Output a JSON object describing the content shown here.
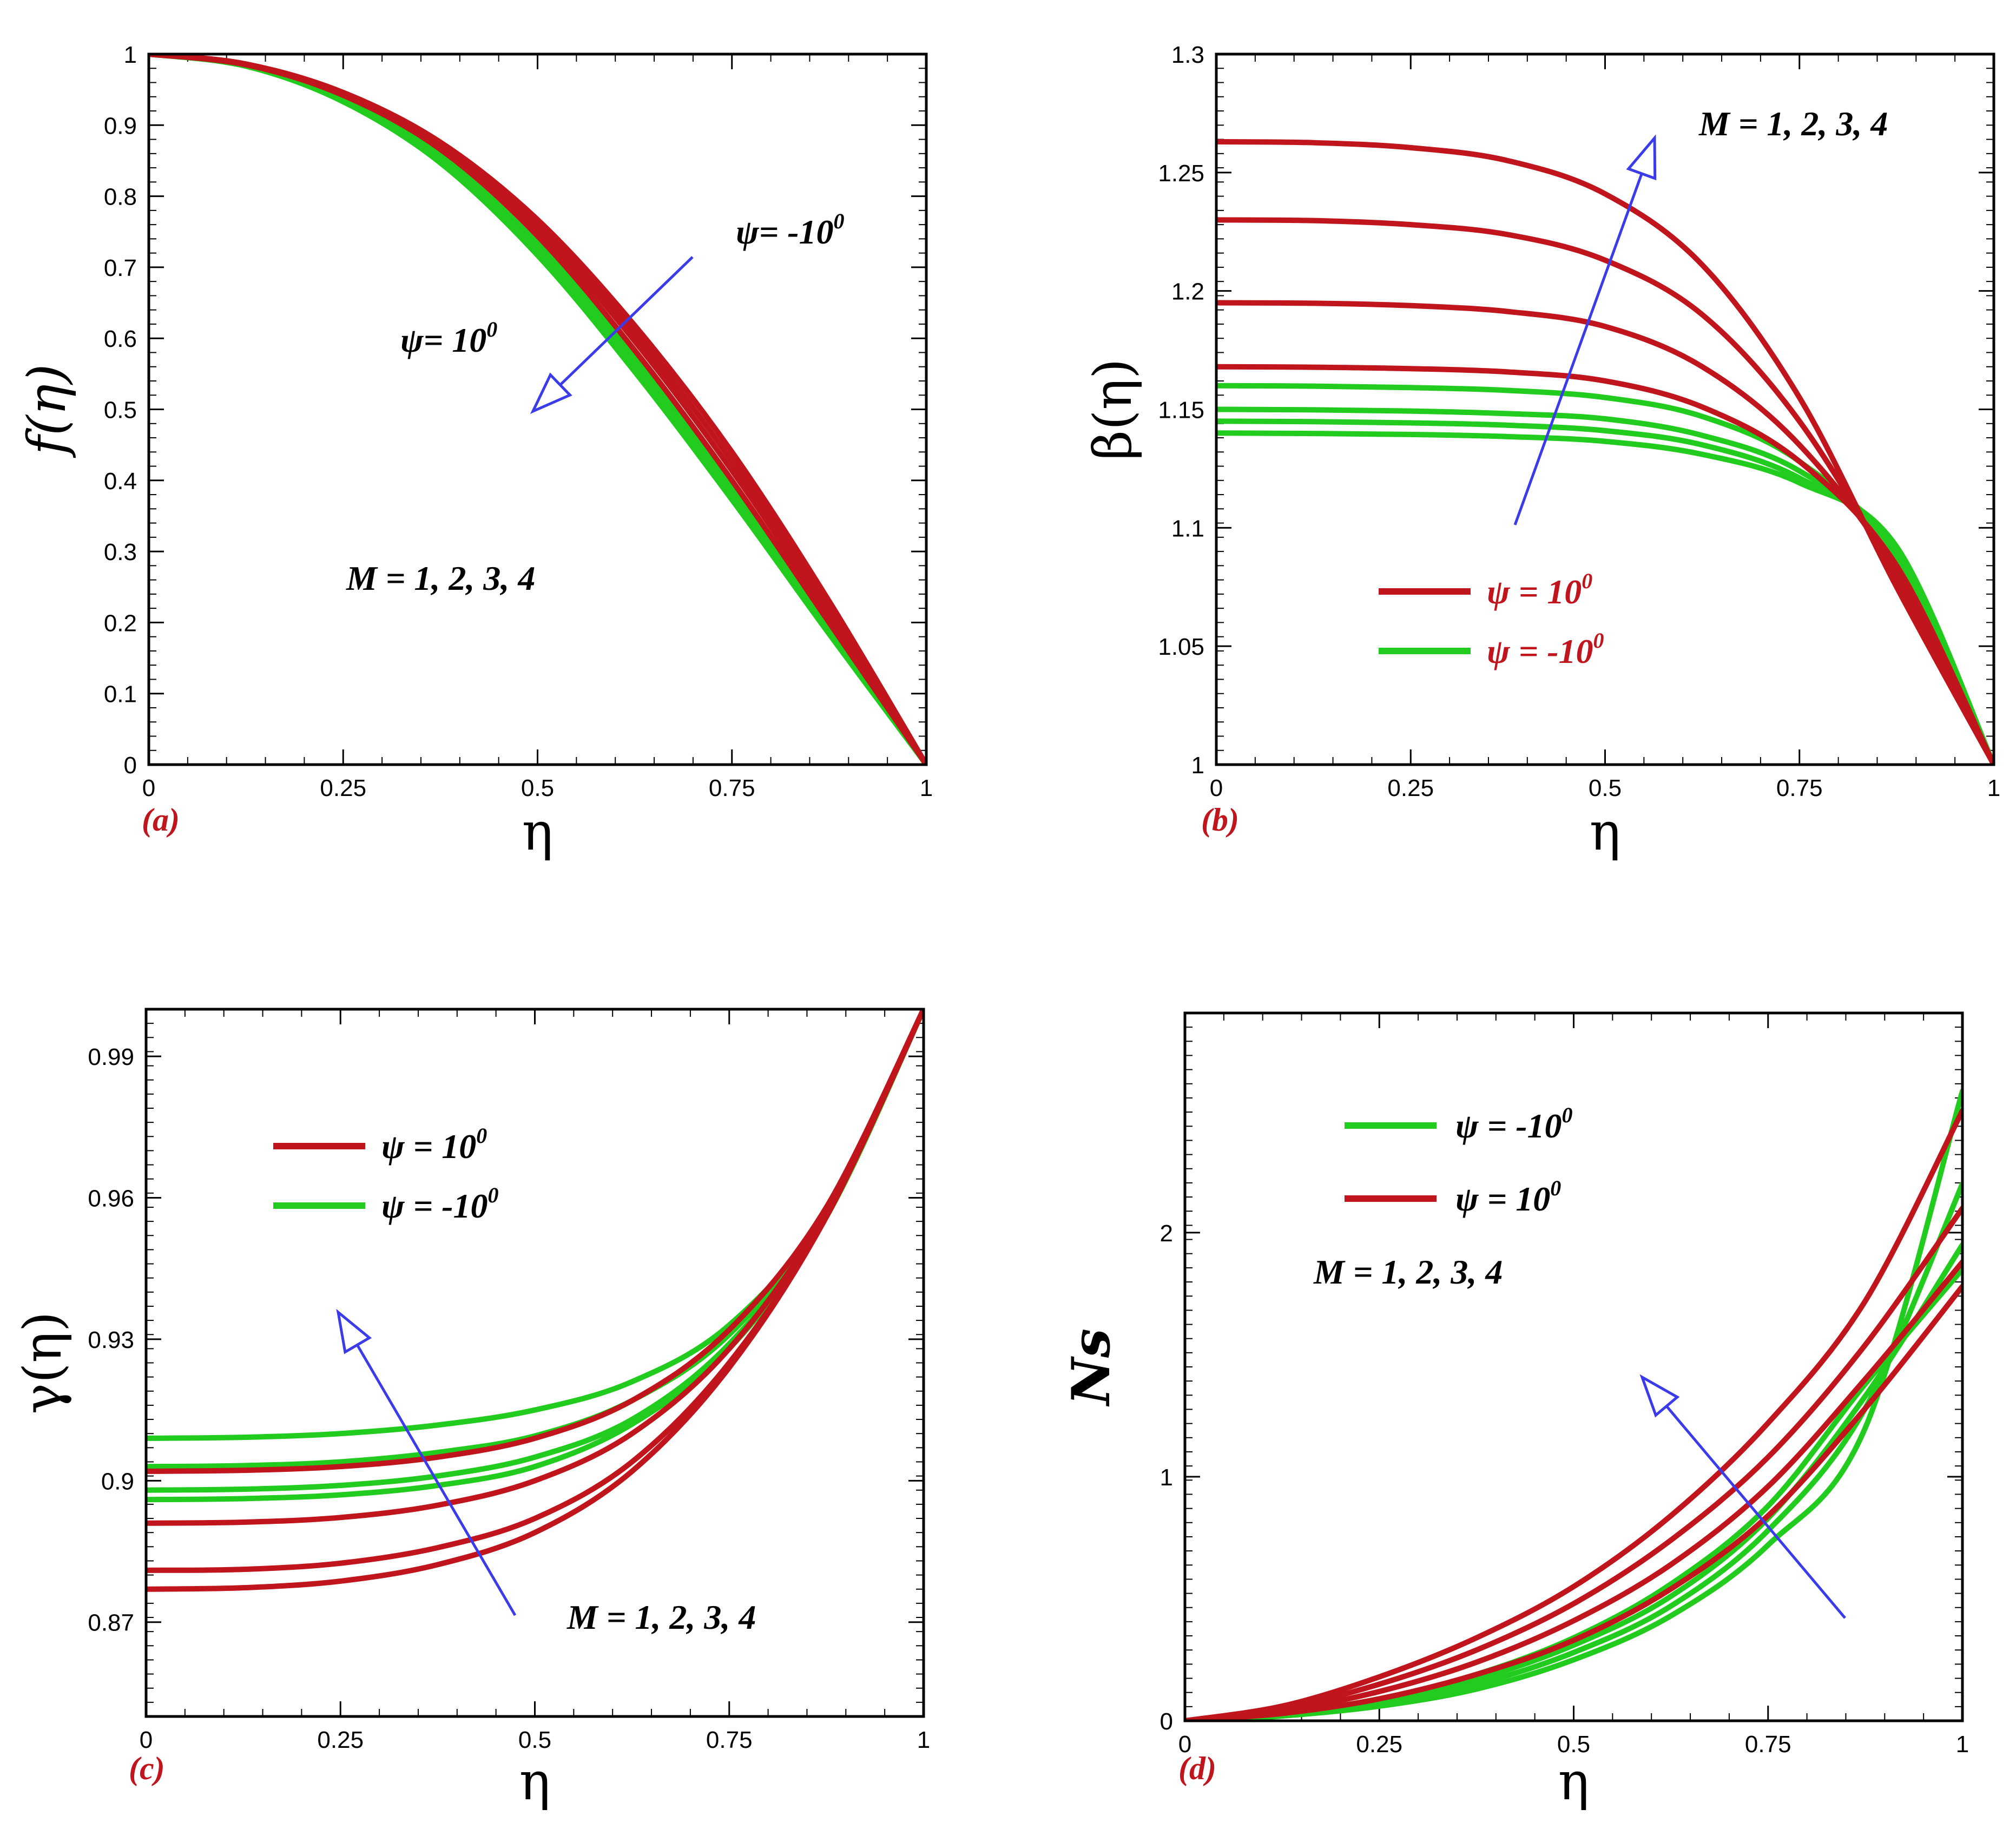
{
  "colors": {
    "red": "#c0151c",
    "green": "#22cc1e",
    "arrow": "#3b3bea",
    "axis": "#000000"
  },
  "chart_data": [
    {
      "id": "a",
      "type": "line",
      "panel_label": "(a)",
      "xlabel": "η",
      "ylabel": "f(η)",
      "xlim": [
        0,
        1
      ],
      "ylim": [
        0,
        1
      ],
      "xticks": [
        "0",
        "0.25",
        "0.5",
        "0.75",
        "1"
      ],
      "yticks": [
        "0",
        "0.1",
        "0.2",
        "0.3",
        "0.4",
        "0.5",
        "0.6",
        "0.7",
        "0.8",
        "0.9",
        "1"
      ],
      "annotations": [
        "ψ= -10",
        "ψ= 10",
        "M = 1, 2, 3, 4"
      ],
      "superscripts": [
        "0",
        "0"
      ],
      "x": [
        0,
        0.125,
        0.25,
        0.375,
        0.5,
        0.625,
        0.75,
        0.875,
        1
      ],
      "series": [
        {
          "name": "ψ = 10⁰, M = 1",
          "color": "red",
          "values": [
            1,
            0.986,
            0.946,
            0.876,
            0.767,
            0.618,
            0.44,
            0.23,
            0
          ]
        },
        {
          "name": "ψ = 10⁰, M = 2",
          "color": "red",
          "values": [
            1,
            0.986,
            0.945,
            0.873,
            0.76,
            0.607,
            0.427,
            0.22,
            0
          ]
        },
        {
          "name": "ψ = 10⁰, M = 3",
          "color": "red",
          "values": [
            1,
            0.986,
            0.944,
            0.87,
            0.753,
            0.596,
            0.414,
            0.211,
            0
          ]
        },
        {
          "name": "ψ = 10⁰, M = 4",
          "color": "red",
          "values": [
            1,
            0.985,
            0.942,
            0.866,
            0.744,
            0.583,
            0.4,
            0.2,
            0
          ]
        },
        {
          "name": "ψ = -10⁰, M = 1",
          "color": "green",
          "values": [
            1,
            0.984,
            0.938,
            0.857,
            0.733,
            0.572,
            0.39,
            0.195,
            0
          ]
        },
        {
          "name": "ψ = -10⁰, M = 2",
          "color": "green",
          "values": [
            1,
            0.984,
            0.936,
            0.853,
            0.727,
            0.565,
            0.383,
            0.19,
            0
          ]
        },
        {
          "name": "ψ = -10⁰, M = 3",
          "color": "green",
          "values": [
            1,
            0.984,
            0.935,
            0.85,
            0.722,
            0.559,
            0.378,
            0.187,
            0
          ]
        },
        {
          "name": "ψ = -10⁰, M = 4",
          "color": "green",
          "values": [
            1,
            0.983,
            0.933,
            0.847,
            0.717,
            0.553,
            0.373,
            0.184,
            0
          ]
        }
      ]
    },
    {
      "id": "b",
      "type": "line",
      "panel_label": "(b)",
      "xlabel": "η",
      "ylabel": "β(η)",
      "xlim": [
        0,
        1
      ],
      "ylim": [
        1,
        1.3
      ],
      "xticks": [
        "0",
        "0.25",
        "0.5",
        "0.75",
        "1"
      ],
      "yticks": [
        "1",
        "1.05",
        "1.1",
        "1.15",
        "1.2",
        "1.25",
        "1.3"
      ],
      "annotations": [
        "M = 1, 2, 3, 4"
      ],
      "legend": [
        {
          "label": "ψ = 10",
          "sup": "0",
          "color": "red"
        },
        {
          "label": "ψ = -10",
          "sup": "0",
          "color": "green"
        }
      ],
      "x": [
        0,
        0.125,
        0.25,
        0.375,
        0.5,
        0.625,
        0.75,
        0.875,
        1
      ],
      "series": [
        {
          "name": "ψ = 10⁰, M = 1",
          "color": "red",
          "values": [
            1.168,
            1.1678,
            1.1672,
            1.1658,
            1.162,
            1.151,
            1.128,
            1.084,
            1.0
          ]
        },
        {
          "name": "ψ = 10⁰, M = 2",
          "color": "red",
          "values": [
            1.195,
            1.1948,
            1.1938,
            1.1913,
            1.185,
            1.168,
            1.135,
            1.081,
            1.0
          ]
        },
        {
          "name": "ψ = 10⁰, M = 3",
          "color": "red",
          "values": [
            1.23,
            1.2297,
            1.228,
            1.2238,
            1.213,
            1.19,
            1.145,
            1.078,
            1.0
          ]
        },
        {
          "name": "ψ = 10⁰, M = 4",
          "color": "red",
          "values": [
            1.263,
            1.2626,
            1.2605,
            1.255,
            1.241,
            1.211,
            1.155,
            1.075,
            1.0
          ]
        },
        {
          "name": "ψ = -10⁰, M = 1",
          "color": "green",
          "values": [
            1.16,
            1.1598,
            1.1592,
            1.158,
            1.155,
            1.147,
            1.128,
            1.088,
            1.0
          ]
        },
        {
          "name": "ψ = -10⁰, M = 2",
          "color": "green",
          "values": [
            1.15,
            1.1498,
            1.1493,
            1.1482,
            1.146,
            1.139,
            1.124,
            1.09,
            1.0
          ]
        },
        {
          "name": "ψ = -10⁰, M = 3",
          "color": "green",
          "values": [
            1.145,
            1.1448,
            1.1443,
            1.1433,
            1.141,
            1.135,
            1.121,
            1.091,
            1.0
          ]
        },
        {
          "name": "ψ = -10⁰, M = 4",
          "color": "green",
          "values": [
            1.14,
            1.1398,
            1.1394,
            1.1385,
            1.1365,
            1.131,
            1.119,
            1.092,
            1.0
          ]
        }
      ]
    },
    {
      "id": "c",
      "type": "line",
      "panel_label": "(c)",
      "xlabel": "η",
      "ylabel": "γ(η)",
      "xlim": [
        0,
        1
      ],
      "ylim": [
        0.85,
        1.0
      ],
      "xticks": [
        "0",
        "0.25",
        "0.5",
        "0.75",
        "1"
      ],
      "yticks": [
        "0.87",
        "0.9",
        "0.93",
        "0.96",
        "0.99"
      ],
      "annotations": [
        "M = 1, 2, 3, 4"
      ],
      "legend": [
        {
          "label": "ψ = 10",
          "sup": "0",
          "color": "red"
        },
        {
          "label": "ψ = -10",
          "sup": "0",
          "color": "green"
        }
      ],
      "x": [
        0,
        0.125,
        0.25,
        0.375,
        0.5,
        0.625,
        0.75,
        0.875,
        1
      ],
      "series": [
        {
          "name": "ψ = 10⁰, M = 1",
          "color": "red",
          "values": [
            0.902,
            0.9022,
            0.903,
            0.905,
            0.909,
            0.917,
            0.932,
            0.958,
            1.0
          ]
        },
        {
          "name": "ψ = 10⁰, M = 2",
          "color": "red",
          "values": [
            0.891,
            0.8912,
            0.8922,
            0.8948,
            0.9,
            0.91,
            0.928,
            0.957,
            1.0
          ]
        },
        {
          "name": "ψ = 10⁰, M = 3",
          "color": "red",
          "values": [
            0.881,
            0.8812,
            0.8825,
            0.8858,
            0.892,
            0.904,
            0.925,
            0.956,
            1.0
          ]
        },
        {
          "name": "ψ = 10⁰, M = 4",
          "color": "red",
          "values": [
            0.877,
            0.8773,
            0.8787,
            0.8822,
            0.889,
            0.902,
            0.924,
            0.956,
            1.0
          ]
        },
        {
          "name": "ψ = -10⁰, M = 1",
          "color": "green",
          "values": [
            0.909,
            0.9092,
            0.91,
            0.9118,
            0.915,
            0.921,
            0.933,
            0.957,
            1.0
          ]
        },
        {
          "name": "ψ = -10⁰, M = 2",
          "color": "green",
          "values": [
            0.903,
            0.9032,
            0.904,
            0.906,
            0.9095,
            0.917,
            0.931,
            0.957,
            1.0
          ]
        },
        {
          "name": "ψ = -10⁰, M = 3",
          "color": "green",
          "values": [
            0.898,
            0.8982,
            0.899,
            0.901,
            0.905,
            0.913,
            0.929,
            0.956,
            1.0
          ]
        },
        {
          "name": "ψ = -10⁰, M = 4",
          "color": "green",
          "values": [
            0.896,
            0.8962,
            0.897,
            0.899,
            0.903,
            0.912,
            0.928,
            0.956,
            1.0
          ]
        }
      ]
    },
    {
      "id": "d",
      "type": "line",
      "panel_label": "(d)",
      "xlabel": "η",
      "ylabel": "Ns",
      "xlim": [
        0,
        1
      ],
      "ylim": [
        0,
        2.9
      ],
      "xticks": [
        "0",
        "0.25",
        "0.5",
        "0.75",
        "1"
      ],
      "yticks": [
        "0",
        "1",
        "2"
      ],
      "annotations": [
        "M = 1, 2, 3, 4"
      ],
      "legend": [
        {
          "label": "ψ = -10",
          "sup": "0",
          "color": "green"
        },
        {
          "label": "ψ = 10",
          "sup": "0",
          "color": "red"
        }
      ],
      "x": [
        0,
        0.125,
        0.25,
        0.375,
        0.5,
        0.625,
        0.75,
        0.875,
        1
      ],
      "series": [
        {
          "name": "ψ = 10⁰, M = 1",
          "color": "red",
          "values": [
            0,
            0.03,
            0.09,
            0.19,
            0.33,
            0.54,
            0.84,
            1.28,
            1.78
          ]
        },
        {
          "name": "ψ = 10⁰, M = 2",
          "color": "red",
          "values": [
            0,
            0.04,
            0.12,
            0.24,
            0.41,
            0.64,
            0.96,
            1.4,
            1.88
          ]
        },
        {
          "name": "ψ = 10⁰, M = 3",
          "color": "red",
          "values": [
            0,
            0.05,
            0.15,
            0.29,
            0.48,
            0.74,
            1.08,
            1.54,
            2.1
          ]
        },
        {
          "name": "ψ = 10⁰, M = 4",
          "color": "red",
          "values": [
            0,
            0.06,
            0.18,
            0.34,
            0.55,
            0.84,
            1.22,
            1.72,
            2.5
          ]
        },
        {
          "name": "ψ = -10⁰, M = 1",
          "color": "green",
          "values": [
            0,
            0.02,
            0.06,
            0.13,
            0.25,
            0.43,
            0.72,
            1.2,
            2.58
          ]
        },
        {
          "name": "ψ = -10⁰, M = 2",
          "color": "green",
          "values": [
            0,
            0.02,
            0.07,
            0.15,
            0.28,
            0.47,
            0.78,
            1.28,
            2.2
          ]
        },
        {
          "name": "ψ = -10⁰, M = 3",
          "color": "green",
          "values": [
            0,
            0.03,
            0.08,
            0.17,
            0.31,
            0.51,
            0.83,
            1.33,
            1.95
          ]
        },
        {
          "name": "ψ = -10⁰, M = 4",
          "color": "green",
          "values": [
            0,
            0.03,
            0.09,
            0.19,
            0.34,
            0.56,
            0.88,
            1.38,
            1.85
          ]
        }
      ]
    }
  ]
}
